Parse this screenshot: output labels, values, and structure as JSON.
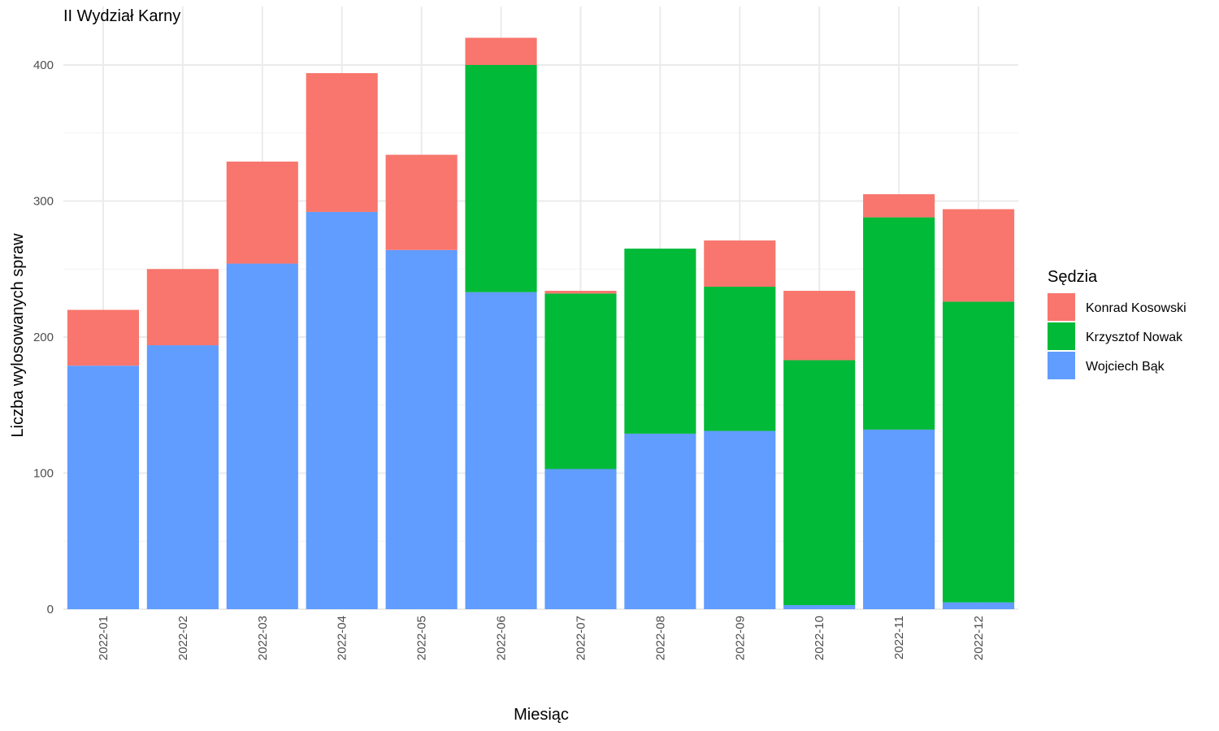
{
  "chart_data": {
    "type": "bar",
    "stacked": true,
    "title": "II Wydział Karny",
    "xlabel": "Miesiąc",
    "ylabel": "Liczba wylosowanych spraw",
    "ylim": [
      0,
      420
    ],
    "yticks": [
      "0",
      "100",
      "200",
      "300",
      "400"
    ],
    "grid": true,
    "legend": {
      "title": "Sędzia",
      "placement": "right"
    },
    "categories": [
      "2022-01",
      "2022-02",
      "2022-03",
      "2022-04",
      "2022-05",
      "2022-06",
      "2022-07",
      "2022-08",
      "2022-09",
      "2022-10",
      "2022-11",
      "2022-12"
    ],
    "series": [
      {
        "name": "Wojciech Bąk",
        "color": "#619CFF",
        "values": [
          179,
          194,
          254,
          292,
          264,
          233,
          103,
          129,
          131,
          3,
          132,
          5
        ]
      },
      {
        "name": "Krzysztof Nowak",
        "color": "#00BA38",
        "values": [
          0,
          0,
          0,
          0,
          0,
          167,
          129,
          136,
          106,
          180,
          156,
          221
        ]
      },
      {
        "name": "Konrad Kosowski",
        "color": "#F8766D",
        "values": [
          41,
          56,
          75,
          102,
          70,
          20,
          2,
          0,
          34,
          51,
          17,
          68
        ]
      }
    ],
    "legend_order": [
      "Konrad Kosowski",
      "Krzysztof Nowak",
      "Wojciech Bąk"
    ]
  }
}
